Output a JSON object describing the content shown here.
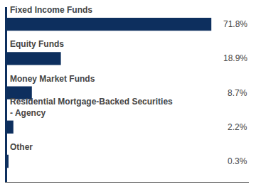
{
  "chart_data": {
    "type": "bar",
    "orientation": "horizontal",
    "categories": [
      "Fixed Income Funds",
      "Equity Funds",
      "Money Market Funds",
      "Residential Mortgage-Backed Securities\n- Agency",
      "Other"
    ],
    "values": [
      71.8,
      18.9,
      8.7,
      2.2,
      0.3
    ],
    "value_labels": [
      "71.8%",
      "18.9%",
      "8.7%",
      "2.2%",
      "0.3%"
    ],
    "data_labels": true,
    "color": "#0d2f5e",
    "xlim": [
      0,
      85
    ],
    "tick_labels": false,
    "grid": false
  }
}
